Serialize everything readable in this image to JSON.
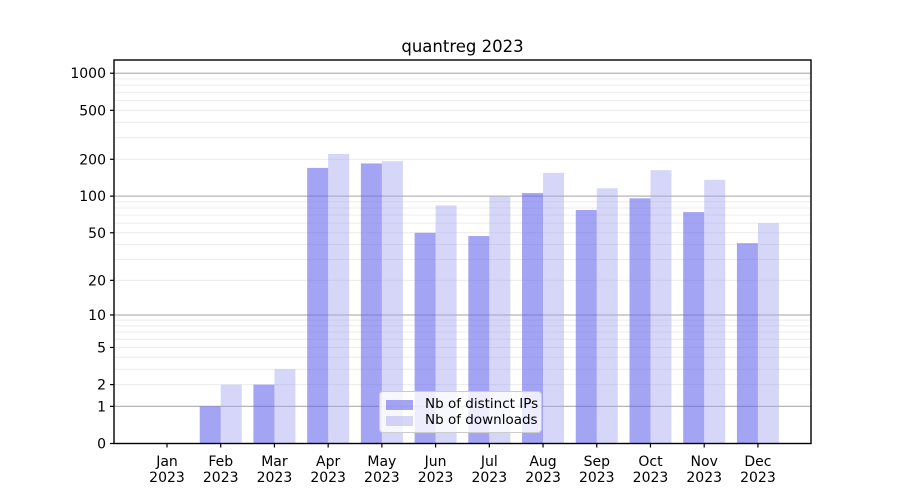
{
  "chart_data": {
    "type": "bar",
    "title": "quantreg 2023",
    "categories": [
      "Jan 2023",
      "Feb 2023",
      "Mar 2023",
      "Apr 2023",
      "May 2023",
      "Jun 2023",
      "Jul 2023",
      "Aug 2023",
      "Sep 2023",
      "Oct 2023",
      "Nov 2023",
      "Dec 2023"
    ],
    "series": [
      {
        "name": "Nb of distinct IPs",
        "color": "rgba(103,103,238,0.6)",
        "values": [
          0,
          1,
          2,
          170,
          185,
          50,
          47,
          106,
          77,
          96,
          74,
          41
        ]
      },
      {
        "name": "Nb of downloads",
        "color": "rgba(164,164,242,0.45)",
        "values": [
          0,
          2,
          3,
          221,
          193,
          84,
          99,
          155,
          116,
          163,
          136,
          60
        ]
      }
    ],
    "xlabel": "",
    "ylabel": "",
    "yscale": "log1p",
    "ylim": [
      0,
      1280
    ],
    "yticks": [
      0,
      1,
      2,
      5,
      10,
      20,
      50,
      100,
      200,
      500,
      1000
    ],
    "grid": {
      "major_values": [
        1,
        10,
        100,
        1000
      ],
      "minor_values": [
        2,
        3,
        4,
        5,
        6,
        7,
        8,
        9,
        20,
        30,
        40,
        50,
        60,
        70,
        80,
        90,
        200,
        300,
        400,
        500,
        600,
        700,
        800,
        900
      ],
      "major_color": "#b5b5b5",
      "minor_color": "#ececec"
    },
    "legend_position": "lower center",
    "colors": {
      "frame": "#000000",
      "text": "#000000",
      "background": "#ffffff"
    }
  }
}
